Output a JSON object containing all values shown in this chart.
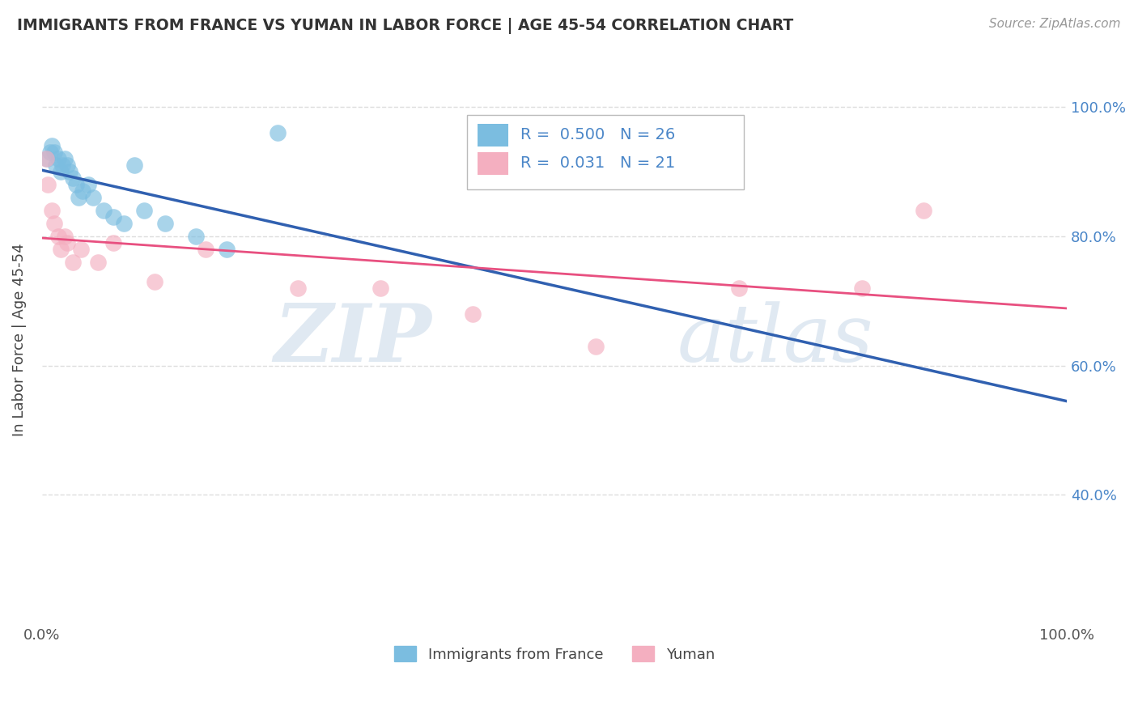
{
  "title": "IMMIGRANTS FROM FRANCE VS YUMAN IN LABOR FORCE | AGE 45-54 CORRELATION CHART",
  "source": "Source: ZipAtlas.com",
  "ylabel": "In Labor Force | Age 45-54",
  "xlim": [
    0.0,
    1.0
  ],
  "ylim": [
    0.2,
    1.08
  ],
  "france_color": "#7bbde0",
  "yuman_color": "#f4afc0",
  "france_line_color": "#3060b0",
  "yuman_line_color": "#e85080",
  "france_R": "0.500",
  "france_N": "26",
  "yuman_R": "0.031",
  "yuman_N": "21",
  "legend_label_france": "Immigrants from France",
  "legend_label_yuman": "Yuman",
  "france_x": [
    0.005,
    0.008,
    0.01,
    0.012,
    0.014,
    0.016,
    0.018,
    0.02,
    0.022,
    0.025,
    0.027,
    0.03,
    0.033,
    0.036,
    0.04,
    0.045,
    0.05,
    0.06,
    0.07,
    0.08,
    0.09,
    0.1,
    0.12,
    0.15,
    0.18,
    0.23
  ],
  "france_y": [
    0.92,
    0.93,
    0.94,
    0.93,
    0.91,
    0.92,
    0.9,
    0.91,
    0.92,
    0.91,
    0.9,
    0.89,
    0.88,
    0.86,
    0.87,
    0.88,
    0.86,
    0.84,
    0.83,
    0.82,
    0.91,
    0.84,
    0.82,
    0.8,
    0.78,
    0.96
  ],
  "yuman_x": [
    0.004,
    0.006,
    0.01,
    0.012,
    0.016,
    0.018,
    0.022,
    0.025,
    0.03,
    0.038,
    0.055,
    0.07,
    0.11,
    0.16,
    0.25,
    0.33,
    0.42,
    0.54,
    0.68,
    0.8,
    0.86
  ],
  "yuman_y": [
    0.92,
    0.88,
    0.84,
    0.82,
    0.8,
    0.78,
    0.8,
    0.79,
    0.76,
    0.78,
    0.76,
    0.79,
    0.73,
    0.78,
    0.72,
    0.72,
    0.68,
    0.63,
    0.72,
    0.72,
    0.84
  ],
  "watermark_zip": "ZIP",
  "watermark_atlas": "atlas",
  "background_color": "#ffffff",
  "grid_color": "#dddddd",
  "grid_yticks": [
    1.0,
    0.8,
    0.6,
    0.4
  ],
  "right_ytick_labels": [
    "100.0%",
    "80.0%",
    "60.0%",
    "40.0%"
  ],
  "xtick_labels": [
    "0.0%",
    "100.0%"
  ],
  "xtick_vals": [
    0.0,
    1.0
  ]
}
